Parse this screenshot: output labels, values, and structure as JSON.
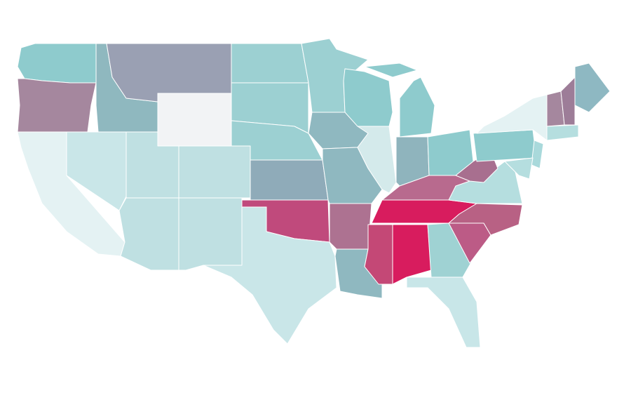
{
  "map": {
    "regions": [
      {
        "color": "#8ecbcd"
      },
      {
        "color": "#a5879e"
      },
      {
        "color": "#e4f2f3"
      },
      {
        "color": "#c9e6e8"
      },
      {
        "color": "#8fb8bf"
      },
      {
        "color": "#9aa0b3"
      },
      {
        "color": "#f2f3f5"
      },
      {
        "color": "#bfe0e2"
      },
      {
        "color": "#bfe0e2"
      },
      {
        "color": "#bfe0e2"
      },
      {
        "color": "#bfe0e2"
      },
      {
        "color": "#9cd0d2"
      },
      {
        "color": "#9cd0d2"
      },
      {
        "color": "#9cd0d2"
      },
      {
        "color": "#8fabb9"
      },
      {
        "color": "#c04a7c"
      },
      {
        "color": "#c9e6e8"
      },
      {
        "color": "#9cd0d2"
      },
      {
        "color": "#8fb8c0"
      },
      {
        "color": "#8fb8c0"
      },
      {
        "color": "#ad7291"
      },
      {
        "color": "#8fb8c0"
      },
      {
        "color": "#8ecbcd"
      },
      {
        "color": "#d4eaeb"
      },
      {
        "color": "#8ecbcd"
      },
      {
        "color": "#8fb4bd"
      },
      {
        "color": "#8ecbcd"
      },
      {
        "color": "#b86a8e"
      },
      {
        "color": "#d81c5e"
      },
      {
        "color": "#c44876"
      },
      {
        "color": "#d81c5e"
      },
      {
        "color": "#9fd2d3"
      },
      {
        "color": "#c8e6e8"
      },
      {
        "color": "#bc5b86"
      },
      {
        "color": "#b86184"
      },
      {
        "color": "#b5dedf"
      },
      {
        "color": "#a86f8f"
      },
      {
        "color": "#8ecbcd"
      },
      {
        "color": "#e4f2f3"
      },
      {
        "color": "#8eb8c2"
      },
      {
        "color": "#a5879e"
      },
      {
        "color": "#9d7d98"
      },
      {
        "color": "#b5dedf"
      },
      {
        "color": "#a9d9db"
      },
      {
        "color": "#b5dedf"
      }
    ]
  }
}
